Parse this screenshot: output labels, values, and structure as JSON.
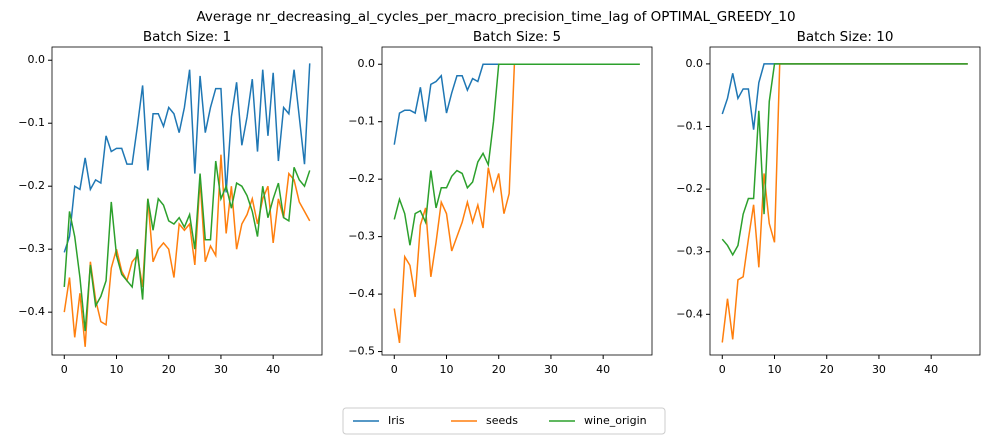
{
  "title": "Average nr_decreasing_al_cycles_per_macro_precision_time_lag of OPTIMAL_GREEDY_10",
  "legend_position": "lower center",
  "chart_data": [
    {
      "type": "line",
      "title": "Batch Size: 1",
      "x": [
        0,
        1,
        2,
        3,
        4,
        5,
        6,
        7,
        8,
        9,
        10,
        11,
        12,
        13,
        14,
        15,
        16,
        17,
        18,
        19,
        20,
        21,
        22,
        23,
        24,
        25,
        26,
        27,
        28,
        29,
        30,
        31,
        32,
        33,
        34,
        35,
        36,
        37,
        38,
        39,
        40,
        41,
        42,
        43,
        44,
        45,
        46,
        47
      ],
      "xlim": [
        -2.35,
        49.35
      ],
      "xticks": [
        0,
        10,
        20,
        30,
        40
      ],
      "ylim": [
        -0.468,
        0.021
      ],
      "yticks": [
        {
          "value": 0,
          "label": "0.0"
        },
        {
          "value": -0.1,
          "label": "−0.1"
        },
        {
          "value": -0.2,
          "label": "−0.2"
        },
        {
          "value": -0.3,
          "label": "−0.3"
        },
        {
          "value": -0.4,
          "label": "−0.4"
        }
      ],
      "series": [
        {
          "name": "Iris",
          "color": "#1f77b4",
          "values": [
            -0.305,
            -0.28,
            -0.2,
            -0.205,
            -0.155,
            -0.205,
            -0.19,
            -0.195,
            -0.12,
            -0.145,
            -0.14,
            -0.14,
            -0.165,
            -0.165,
            -0.105,
            -0.04,
            -0.175,
            -0.085,
            -0.085,
            -0.105,
            -0.075,
            -0.085,
            -0.115,
            -0.075,
            -0.015,
            -0.18,
            -0.025,
            -0.115,
            -0.075,
            -0.045,
            -0.045,
            -0.21,
            -0.09,
            -0.035,
            -0.135,
            -0.09,
            -0.03,
            -0.145,
            -0.015,
            -0.12,
            -0.02,
            -0.16,
            -0.075,
            -0.085,
            -0.015,
            -0.09,
            -0.165,
            -0.005
          ]
        },
        {
          "name": "seeds",
          "color": "#ff7f0e",
          "values": [
            -0.4,
            -0.345,
            -0.44,
            -0.37,
            -0.455,
            -0.32,
            -0.38,
            -0.415,
            -0.42,
            -0.33,
            -0.3,
            -0.335,
            -0.35,
            -0.32,
            -0.31,
            -0.36,
            -0.22,
            -0.32,
            -0.3,
            -0.29,
            -0.3,
            -0.345,
            -0.26,
            -0.27,
            -0.26,
            -0.325,
            -0.19,
            -0.32,
            -0.295,
            -0.31,
            -0.15,
            -0.275,
            -0.2,
            -0.3,
            -0.26,
            -0.245,
            -0.22,
            -0.26,
            -0.22,
            -0.2,
            -0.29,
            -0.22,
            -0.25,
            -0.18,
            -0.19,
            -0.225,
            -0.24,
            -0.255
          ]
        },
        {
          "name": "wine_origin",
          "color": "#2ca02c",
          "values": [
            -0.36,
            -0.24,
            -0.28,
            -0.345,
            -0.43,
            -0.325,
            -0.39,
            -0.375,
            -0.35,
            -0.225,
            -0.31,
            -0.34,
            -0.35,
            -0.36,
            -0.3,
            -0.38,
            -0.22,
            -0.27,
            -0.22,
            -0.23,
            -0.255,
            -0.26,
            -0.25,
            -0.265,
            -0.245,
            -0.3,
            -0.18,
            -0.285,
            -0.285,
            -0.16,
            -0.22,
            -0.2,
            -0.235,
            -0.195,
            -0.2,
            -0.215,
            -0.24,
            -0.28,
            -0.2,
            -0.25,
            -0.22,
            -0.195,
            -0.25,
            -0.255,
            -0.17,
            -0.19,
            -0.2,
            -0.175
          ]
        }
      ]
    },
    {
      "type": "line",
      "title": "Batch Size: 5",
      "x": [
        0,
        1,
        2,
        3,
        4,
        5,
        6,
        7,
        8,
        9,
        10,
        11,
        12,
        13,
        14,
        15,
        16,
        17,
        18,
        19,
        20,
        21,
        22,
        23,
        24,
        25,
        26,
        27,
        28,
        29,
        30,
        31,
        32,
        33,
        34,
        35,
        36,
        37,
        38,
        39,
        40,
        41,
        42,
        43,
        44,
        45,
        46,
        47
      ],
      "xlim": [
        -2.35,
        49.35
      ],
      "xticks": [
        0,
        10,
        20,
        30,
        40
      ],
      "ylim": [
        -0.506,
        0.03
      ],
      "yticks": [
        {
          "value": 0,
          "label": "0.0"
        },
        {
          "value": -0.1,
          "label": "−0.1"
        },
        {
          "value": -0.2,
          "label": "−0.2"
        },
        {
          "value": -0.3,
          "label": "−0.3"
        },
        {
          "value": -0.4,
          "label": "−0.4"
        },
        {
          "value": -0.5,
          "label": "−0.5"
        }
      ],
      "series": [
        {
          "name": "Iris",
          "color": "#1f77b4",
          "values": [
            -0.14,
            -0.085,
            -0.08,
            -0.08,
            -0.085,
            -0.04,
            -0.1,
            -0.035,
            -0.03,
            -0.02,
            -0.085,
            -0.05,
            -0.02,
            -0.02,
            -0.045,
            -0.025,
            -0.03,
            0,
            0,
            0,
            0,
            0,
            0,
            0,
            0,
            0,
            0,
            0,
            0,
            0,
            0,
            0,
            0,
            0,
            0,
            0,
            0,
            0,
            0,
            0,
            0,
            0,
            0,
            0,
            0,
            0,
            0,
            0
          ]
        },
        {
          "name": "seeds",
          "color": "#ff7f0e",
          "values": [
            -0.425,
            -0.485,
            -0.335,
            -0.35,
            -0.405,
            -0.28,
            -0.25,
            -0.37,
            -0.31,
            -0.24,
            -0.26,
            -0.325,
            -0.3,
            -0.275,
            -0.24,
            -0.275,
            -0.245,
            -0.285,
            -0.18,
            -0.22,
            -0.19,
            -0.26,
            -0.225,
            0,
            0,
            0,
            0,
            0,
            0,
            0,
            0,
            0,
            0,
            0,
            0,
            0,
            0,
            0,
            0,
            0,
            0,
            0,
            0,
            0,
            0,
            0,
            0,
            0
          ]
        },
        {
          "name": "wine_origin",
          "color": "#2ca02c",
          "values": [
            -0.27,
            -0.235,
            -0.26,
            -0.315,
            -0.26,
            -0.255,
            -0.275,
            -0.185,
            -0.25,
            -0.215,
            -0.215,
            -0.195,
            -0.185,
            -0.19,
            -0.215,
            -0.205,
            -0.17,
            -0.155,
            -0.175,
            -0.1,
            0,
            0,
            0,
            0,
            0,
            0,
            0,
            0,
            0,
            0,
            0,
            0,
            0,
            0,
            0,
            0,
            0,
            0,
            0,
            0,
            0,
            0,
            0,
            0,
            0,
            0,
            0,
            0
          ]
        }
      ]
    },
    {
      "type": "line",
      "title": "Batch Size: 10",
      "x": [
        0,
        1,
        2,
        3,
        4,
        5,
        6,
        7,
        8,
        9,
        10,
        11,
        12,
        13,
        14,
        15,
        16,
        17,
        18,
        19,
        20,
        21,
        22,
        23,
        24,
        25,
        26,
        27,
        28,
        29,
        30,
        31,
        32,
        33,
        34,
        35,
        36,
        37,
        38,
        39,
        40,
        41,
        42,
        43,
        44,
        45,
        46,
        47
      ],
      "xlim": [
        -2.35,
        49.35
      ],
      "xticks": [
        0,
        10,
        20,
        30,
        40
      ],
      "ylim": [
        -0.465,
        0.027
      ],
      "yticks": [
        {
          "value": 0,
          "label": "0.0"
        },
        {
          "value": -0.1,
          "label": "−0.1"
        },
        {
          "value": -0.2,
          "label": "−0.2"
        },
        {
          "value": -0.3,
          "label": "−0.3"
        },
        {
          "value": -0.4,
          "label": "−0.4"
        }
      ],
      "series": [
        {
          "name": "Iris",
          "color": "#1f77b4",
          "values": [
            -0.08,
            -0.055,
            -0.015,
            -0.055,
            -0.04,
            -0.04,
            -0.105,
            -0.03,
            0,
            0,
            0,
            0,
            0,
            0,
            0,
            0,
            0,
            0,
            0,
            0,
            0,
            0,
            0,
            0,
            0,
            0,
            0,
            0,
            0,
            0,
            0,
            0,
            0,
            0,
            0,
            0,
            0,
            0,
            0,
            0,
            0,
            0,
            0,
            0,
            0,
            0,
            0,
            0
          ]
        },
        {
          "name": "seeds",
          "color": "#ff7f0e",
          "values": [
            -0.445,
            -0.375,
            -0.44,
            -0.345,
            -0.34,
            -0.28,
            -0.225,
            -0.325,
            -0.175,
            -0.255,
            -0.285,
            0,
            0,
            0,
            0,
            0,
            0,
            0,
            0,
            0,
            0,
            0,
            0,
            0,
            0,
            0,
            0,
            0,
            0,
            0,
            0,
            0,
            0,
            0,
            0,
            0,
            0,
            0,
            0,
            0,
            0,
            0,
            0,
            0,
            0,
            0,
            0,
            0
          ]
        },
        {
          "name": "wine_origin",
          "color": "#2ca02c",
          "values": [
            -0.28,
            -0.29,
            -0.305,
            -0.29,
            -0.24,
            -0.215,
            -0.215,
            -0.075,
            -0.24,
            -0.06,
            0,
            0,
            0,
            0,
            0,
            0,
            0,
            0,
            0,
            0,
            0,
            0,
            0,
            0,
            0,
            0,
            0,
            0,
            0,
            0,
            0,
            0,
            0,
            0,
            0,
            0,
            0,
            0,
            0,
            0,
            0,
            0,
            0,
            0,
            0,
            0,
            0,
            0
          ]
        }
      ]
    }
  ]
}
